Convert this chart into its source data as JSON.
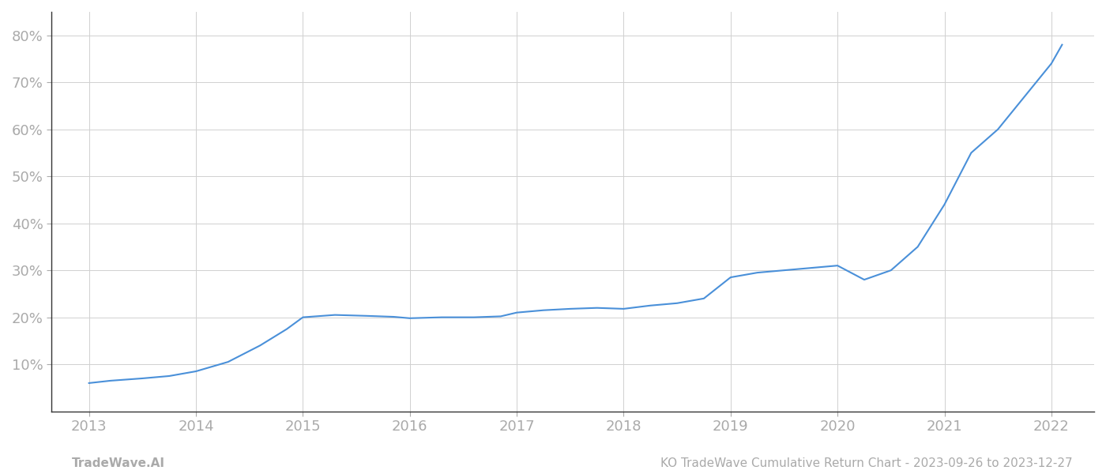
{
  "x_years": [
    2013,
    2014,
    2015,
    2016,
    2017,
    2018,
    2019,
    2020,
    2021,
    2022
  ],
  "x_values": [
    2013.0,
    2013.2,
    2013.5,
    2013.75,
    2014.0,
    2014.3,
    2014.6,
    2014.85,
    2015.0,
    2015.3,
    2015.6,
    2015.85,
    2016.0,
    2016.3,
    2016.6,
    2016.85,
    2017.0,
    2017.25,
    2017.5,
    2017.75,
    2018.0,
    2018.25,
    2018.5,
    2018.75,
    2019.0,
    2019.25,
    2019.5,
    2019.75,
    2020.0,
    2020.25,
    2020.5,
    2020.75,
    2021.0,
    2021.25,
    2021.5,
    2021.75,
    2022.0,
    2022.1
  ],
  "y_values": [
    6.0,
    6.5,
    7.0,
    7.5,
    8.5,
    10.5,
    14.0,
    17.5,
    20.0,
    20.5,
    20.3,
    20.1,
    19.8,
    20.0,
    20.0,
    20.2,
    21.0,
    21.5,
    21.8,
    22.0,
    21.8,
    22.5,
    23.0,
    24.0,
    28.5,
    29.5,
    30.0,
    30.5,
    31.0,
    28.0,
    30.0,
    35.0,
    44.0,
    55.0,
    60.0,
    67.0,
    74.0,
    78.0
  ],
  "line_color": "#4a90d9",
  "line_width": 1.5,
  "background_color": "#ffffff",
  "grid_color": "#d0d0d0",
  "tick_color": "#aaaaaa",
  "xlabel_color": "#aaaaaa",
  "ylabel_color": "#aaaaaa",
  "ytick_labels": [
    "10%",
    "20%",
    "30%",
    "40%",
    "50%",
    "60%",
    "70%",
    "80%"
  ],
  "ytick_values": [
    10,
    20,
    30,
    40,
    50,
    60,
    70,
    80
  ],
  "xlim": [
    2012.65,
    2022.4
  ],
  "ylim": [
    0,
    85
  ],
  "footer_left": "TradeWave.AI",
  "footer_right": "KO TradeWave Cumulative Return Chart - 2023-09-26 to 2023-12-27",
  "footer_color": "#aaaaaa",
  "footer_fontsize": 11
}
